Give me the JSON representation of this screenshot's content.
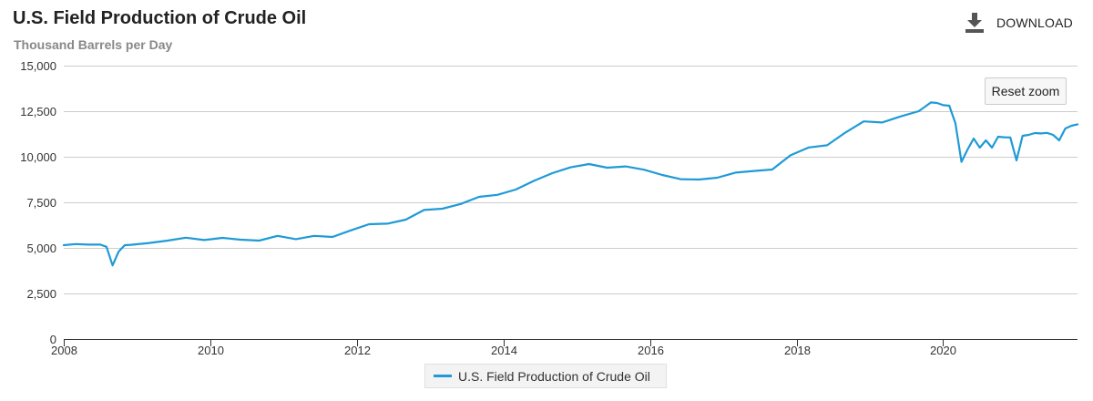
{
  "header": {
    "title": "U.S. Field Production of Crude Oil",
    "subtitle": "Thousand Barrels per Day",
    "download_label": "DOWNLOAD",
    "download_icon": "download-icon"
  },
  "controls": {
    "reset_zoom_label": "Reset zoom"
  },
  "colors": {
    "series": "#1f9ad6",
    "grid": "#cccccc",
    "axis": "#333333"
  },
  "chart_data": {
    "type": "line",
    "title": "U.S. Field Production of Crude Oil",
    "subtitle": "Thousand Barrels per Day",
    "xlabel": "",
    "ylabel": "",
    "xlim": [
      "2008-01",
      "2021-11"
    ],
    "ylim": [
      0,
      15000
    ],
    "yticks": [
      0,
      2500,
      5000,
      7500,
      10000,
      12500,
      15000
    ],
    "ytick_labels": [
      "0",
      "2,500",
      "5,000",
      "7,500",
      "10,000",
      "12,500",
      "15,000"
    ],
    "xticks": [
      "2008-01",
      "2010-01",
      "2012-01",
      "2014-01",
      "2016-01",
      "2018-01",
      "2020-01"
    ],
    "xtick_labels": [
      "2008",
      "2010",
      "2012",
      "2014",
      "2016",
      "2018",
      "2020"
    ],
    "grid": true,
    "legend_position": "bottom-center",
    "series": [
      {
        "name": "U.S. Field Production of Crude Oil",
        "x": [
          "2008-01",
          "2008-03",
          "2008-05",
          "2008-07",
          "2008-08",
          "2008-09",
          "2008-10",
          "2008-11",
          "2008-12",
          "2009-03",
          "2009-06",
          "2009-09",
          "2009-12",
          "2010-03",
          "2010-06",
          "2010-09",
          "2010-12",
          "2011-03",
          "2011-06",
          "2011-09",
          "2011-12",
          "2012-03",
          "2012-06",
          "2012-09",
          "2012-12",
          "2013-03",
          "2013-06",
          "2013-09",
          "2013-12",
          "2014-03",
          "2014-06",
          "2014-09",
          "2014-12",
          "2015-03",
          "2015-06",
          "2015-09",
          "2015-12",
          "2016-03",
          "2016-06",
          "2016-09",
          "2016-12",
          "2017-03",
          "2017-06",
          "2017-09",
          "2017-12",
          "2018-03",
          "2018-06",
          "2018-09",
          "2018-12",
          "2019-03",
          "2019-06",
          "2019-09",
          "2019-11",
          "2019-12",
          "2020-01",
          "2020-02",
          "2020-03",
          "2020-04",
          "2020-05",
          "2020-06",
          "2020-07",
          "2020-08",
          "2020-09",
          "2020-10",
          "2020-11",
          "2020-12",
          "2021-01",
          "2021-02",
          "2021-03",
          "2021-04",
          "2021-05",
          "2021-06",
          "2021-07",
          "2021-08",
          "2021-09",
          "2021-10",
          "2021-11"
        ],
        "y": [
          5150,
          5210,
          5180,
          5180,
          5060,
          4040,
          4800,
          5150,
          5170,
          5270,
          5400,
          5560,
          5430,
          5550,
          5450,
          5400,
          5660,
          5480,
          5660,
          5600,
          5960,
          6300,
          6330,
          6550,
          7080,
          7150,
          7410,
          7800,
          7910,
          8200,
          8680,
          9100,
          9420,
          9600,
          9400,
          9470,
          9290,
          9000,
          8770,
          8750,
          8850,
          9130,
          9220,
          9300,
          10080,
          10510,
          10630,
          11330,
          11940,
          11880,
          12210,
          12500,
          12980,
          12950,
          12830,
          12800,
          11850,
          9720,
          10400,
          11000,
          10500,
          10900,
          10500,
          11100,
          11070,
          11060,
          9800,
          11150,
          11200,
          11300,
          11280,
          11310,
          11200,
          10900,
          11550,
          11700,
          11780
        ]
      }
    ]
  },
  "legend": {
    "items": [
      {
        "label": "U.S. Field Production of Crude Oil"
      }
    ]
  }
}
